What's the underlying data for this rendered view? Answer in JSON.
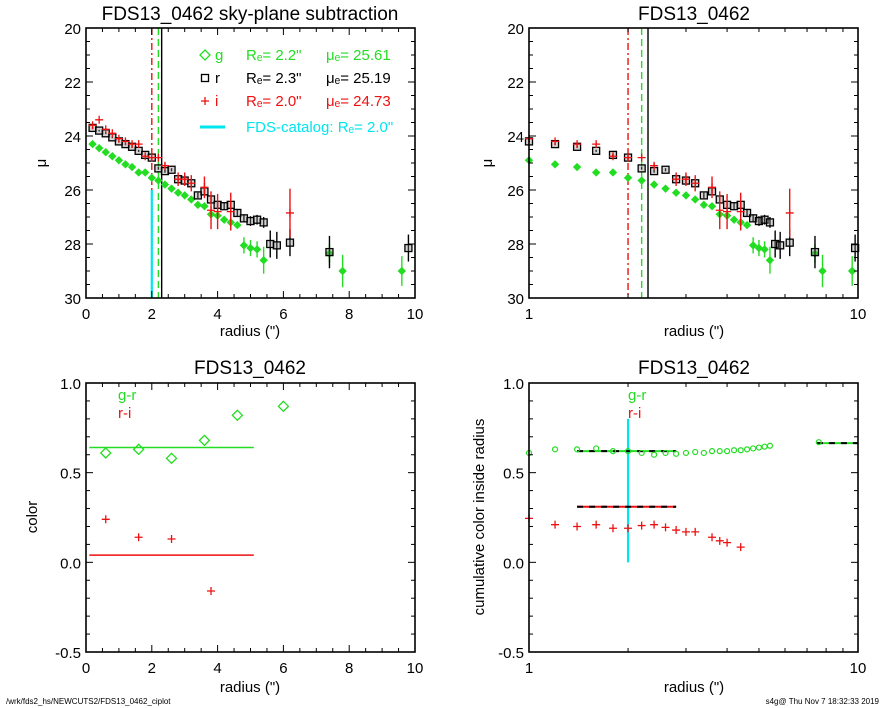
{
  "footer": {
    "path": "/wrk/fds2_hs/NEWCUTS2/FDS13_0462_ciplot",
    "stamp": "s4g@  Thu Nov  7 18:32:33 2019"
  },
  "colors": {
    "g": "#22dd22",
    "r": "#000000",
    "i": "#ee1111",
    "catalog": "#00e5ee"
  },
  "chart_data": [
    {
      "id": "profile-linear",
      "type": "scatter",
      "title": "FDS13_0462 sky-plane subtraction",
      "xlabel": "radius (\")",
      "ylabel": "μ",
      "xlim": [
        0,
        10
      ],
      "ylim": [
        30,
        20
      ],
      "xscale": "linear",
      "xticks": [
        "0",
        "2",
        "4",
        "6",
        "8",
        "10"
      ],
      "yticks": [
        "20",
        "22",
        "24",
        "26",
        "28",
        "30"
      ],
      "legend": [
        {
          "marker": "diamond",
          "band": "g",
          "re_label": "Re=",
          "re": "2.2\"",
          "mue_label": "μe=",
          "mue": "25.61",
          "color_key": "g"
        },
        {
          "marker": "square",
          "band": "r",
          "re_label": "Re=",
          "re": "2.3\"",
          "mue_label": "μe=",
          "mue": "25.19",
          "color_key": "r"
        },
        {
          "marker": "plus",
          "band": "i",
          "re_label": "Re=",
          "re": "2.0\"",
          "mue_label": "μe=",
          "mue": "24.73",
          "color_key": "i"
        },
        {
          "marker": "line",
          "band": "",
          "text": "FDS-catalog: Re=   2.0\"",
          "color_key": "catalog"
        }
      ],
      "vlines": [
        {
          "x": 2.0,
          "style": "dashdot",
          "color_key": "i"
        },
        {
          "x": 2.2,
          "style": "dashed",
          "color_key": "g"
        },
        {
          "x": 2.3,
          "style": "solid",
          "color_key": "r"
        },
        {
          "x": 2.0,
          "style": "solid-partial",
          "color_key": "catalog",
          "from": 26.0,
          "to": 30.0
        }
      ],
      "series": [
        {
          "name": "g",
          "marker": "diamond-filled",
          "x": [
            0.2,
            0.4,
            0.6,
            0.8,
            1.0,
            1.2,
            1.4,
            1.6,
            1.8,
            2.0,
            2.2,
            2.4,
            2.6,
            2.8,
            3.0,
            3.2,
            3.4,
            3.6,
            3.8,
            4.0,
            4.2,
            4.4,
            4.6,
            4.8,
            5.0,
            5.2,
            5.4,
            7.4,
            7.8,
            9.6
          ],
          "y": [
            24.3,
            24.45,
            24.6,
            24.75,
            24.9,
            25.05,
            25.15,
            25.35,
            25.35,
            25.55,
            25.65,
            25.8,
            25.95,
            26.1,
            26.2,
            26.35,
            26.55,
            26.6,
            26.9,
            26.95,
            27.1,
            27.2,
            27.3,
            28.05,
            28.15,
            28.2,
            28.6,
            28.35,
            29.0,
            29.0
          ],
          "err": [
            0.03,
            0.03,
            0.03,
            0.03,
            0.03,
            0.03,
            0.03,
            0.03,
            0.03,
            0.03,
            0.04,
            0.04,
            0.05,
            0.05,
            0.05,
            0.06,
            0.06,
            0.07,
            0.08,
            0.08,
            0.1,
            0.1,
            0.12,
            0.3,
            0.3,
            0.3,
            0.5,
            0.35,
            0.6,
            0.55
          ]
        },
        {
          "name": "r",
          "marker": "square",
          "x": [
            0.2,
            0.4,
            0.6,
            0.8,
            1.0,
            1.2,
            1.4,
            1.6,
            1.8,
            2.0,
            2.2,
            2.4,
            2.6,
            2.8,
            3.0,
            3.2,
            3.4,
            3.6,
            3.8,
            4.0,
            4.2,
            4.4,
            4.6,
            4.8,
            5.0,
            5.2,
            5.4,
            5.6,
            5.8,
            6.2,
            7.4,
            9.8
          ],
          "y": [
            23.7,
            23.8,
            23.9,
            24.05,
            24.2,
            24.3,
            24.4,
            24.55,
            24.7,
            24.8,
            25.2,
            25.3,
            25.25,
            25.6,
            25.65,
            25.75,
            26.2,
            26.05,
            26.35,
            26.55,
            26.6,
            26.55,
            26.85,
            27.05,
            27.15,
            27.1,
            27.2,
            28.0,
            28.05,
            27.95,
            28.3,
            28.15
          ],
          "err": [
            0.03,
            0.03,
            0.03,
            0.03,
            0.03,
            0.03,
            0.04,
            0.04,
            0.04,
            0.05,
            0.05,
            0.06,
            0.06,
            0.07,
            0.08,
            0.08,
            0.1,
            0.1,
            0.1,
            0.1,
            0.12,
            0.12,
            0.15,
            0.15,
            0.18,
            0.18,
            0.2,
            0.5,
            0.5,
            0.5,
            0.6,
            0.5
          ]
        },
        {
          "name": "i",
          "marker": "plus",
          "x": [
            0.2,
            0.4,
            0.6,
            0.8,
            1.0,
            1.2,
            1.4,
            1.6,
            1.8,
            2.0,
            2.2,
            2.4,
            2.8,
            3.0,
            3.2,
            3.6,
            3.8,
            4.0,
            4.4,
            6.2
          ],
          "y": [
            23.6,
            23.4,
            23.75,
            23.9,
            24.1,
            24.2,
            24.3,
            24.3,
            24.75,
            24.8,
            24.8,
            25.1,
            25.6,
            25.6,
            25.75,
            25.9,
            26.75,
            26.8,
            26.8,
            26.85
          ],
          "err": [
            0.03,
            0.03,
            0.04,
            0.04,
            0.05,
            0.05,
            0.06,
            0.06,
            0.07,
            0.08,
            0.08,
            0.1,
            0.25,
            0.25,
            0.3,
            0.4,
            0.7,
            0.65,
            0.7,
            0.9
          ]
        }
      ]
    },
    {
      "id": "profile-log",
      "type": "scatter",
      "title": "FDS13_0462",
      "xlabel": "radius (\")",
      "ylabel": "μ",
      "xlim": [
        1,
        10
      ],
      "ylim": [
        30,
        20
      ],
      "xscale": "log",
      "xticks": [
        "1",
        "10"
      ],
      "yticks": [
        "20",
        "22",
        "24",
        "26",
        "28",
        "30"
      ],
      "vlines": [
        {
          "x": 2.0,
          "style": "dashdot",
          "color_key": "i"
        },
        {
          "x": 2.2,
          "style": "dashed",
          "color_key": "g"
        },
        {
          "x": 2.3,
          "style": "solid",
          "color_key": "r"
        }
      ],
      "series_ref": "profile-linear"
    },
    {
      "id": "color-linear",
      "type": "scatter",
      "title": "FDS13_0462",
      "xlabel": "radius (\")",
      "ylabel": "color",
      "xlim": [
        0,
        10
      ],
      "ylim": [
        -0.5,
        1.0
      ],
      "xscale": "linear",
      "xticks": [
        "0",
        "2",
        "4",
        "6",
        "8",
        "10"
      ],
      "yticks": [
        "-0.5",
        "0.0",
        "0.5",
        "1.0"
      ],
      "legend": [
        {
          "text": "g-r",
          "color_key": "g"
        },
        {
          "text": "r-i",
          "color_key": "i"
        }
      ],
      "hlines": [
        {
          "name": "g-r mean",
          "y": 0.64,
          "x0": 0.1,
          "x1": 5.1,
          "color_key": "g"
        },
        {
          "name": "r-i mean",
          "y": 0.04,
          "x0": 0.1,
          "x1": 5.1,
          "color_key": "i"
        }
      ],
      "series": [
        {
          "name": "g-r",
          "marker": "diamond",
          "x": [
            0.6,
            1.6,
            2.6,
            3.6,
            4.6,
            6.0
          ],
          "y": [
            0.61,
            0.63,
            0.58,
            0.68,
            0.82,
            0.87
          ]
        },
        {
          "name": "r-i",
          "marker": "plus",
          "x": [
            0.6,
            1.6,
            2.6,
            3.8
          ],
          "y": [
            0.24,
            0.14,
            0.13,
            -0.16
          ]
        }
      ]
    },
    {
      "id": "cumulative-color-log",
      "type": "scatter",
      "title": "FDS13_0462",
      "xlabel": "radius (\")",
      "ylabel": "cumulative color inside radius",
      "xlim": [
        1,
        10
      ],
      "ylim": [
        -0.5,
        1.0
      ],
      "xscale": "log",
      "xticks": [
        "1",
        "10"
      ],
      "yticks": [
        "-0.5",
        "0.0",
        "0.5",
        "1.0"
      ],
      "legend": [
        {
          "text": "g-r",
          "color_key": "g"
        },
        {
          "text": "r-i",
          "color_key": "i"
        }
      ],
      "vlines": [
        {
          "x": 2.0,
          "from": 0.0,
          "to": 0.8,
          "color_key": "catalog"
        }
      ],
      "hlines": [
        {
          "name": "g-r inner",
          "y": 0.62,
          "x0": 1.4,
          "x1": 2.8,
          "style": "dashed-black-green"
        },
        {
          "name": "r-i inner",
          "y": 0.31,
          "x0": 1.4,
          "x1": 2.8,
          "style": "dashed-black-red"
        },
        {
          "name": "g-r outer",
          "y": 0.665,
          "x0": 7.5,
          "x1": 10,
          "style": "dashed-black-green"
        }
      ],
      "series": [
        {
          "name": "g-r",
          "marker": "circle",
          "x": [
            1.0,
            1.2,
            1.4,
            1.6,
            1.8,
            2.0,
            2.2,
            2.4,
            2.6,
            2.8,
            3.0,
            3.2,
            3.4,
            3.6,
            3.8,
            4.0,
            4.2,
            4.4,
            4.6,
            4.8,
            5.0,
            5.2,
            5.4,
            7.6
          ],
          "y": [
            0.61,
            0.63,
            0.63,
            0.635,
            0.62,
            0.62,
            0.61,
            0.6,
            0.61,
            0.605,
            0.61,
            0.615,
            0.61,
            0.62,
            0.62,
            0.62,
            0.625,
            0.625,
            0.63,
            0.635,
            0.64,
            0.645,
            0.65,
            0.67
          ]
        },
        {
          "name": "r-i",
          "marker": "plus",
          "x": [
            1.0,
            1.2,
            1.4,
            1.6,
            1.8,
            2.0,
            2.2,
            2.4,
            2.6,
            2.8,
            3.0,
            3.2,
            3.6,
            3.8,
            4.0,
            4.4
          ],
          "y": [
            0.245,
            0.21,
            0.2,
            0.21,
            0.19,
            0.19,
            0.205,
            0.21,
            0.195,
            0.18,
            0.17,
            0.17,
            0.14,
            0.12,
            0.11,
            0.085
          ]
        }
      ]
    }
  ]
}
